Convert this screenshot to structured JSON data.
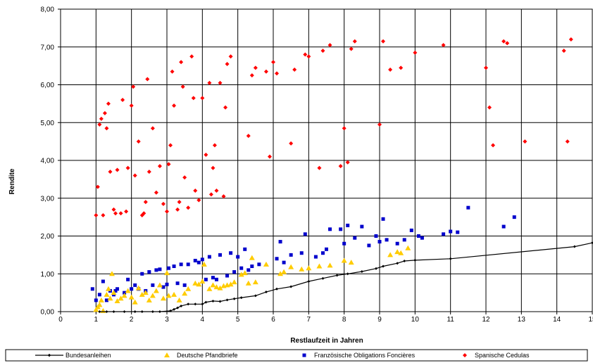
{
  "chart_data": {
    "type": "scatter",
    "title": "",
    "xlabel": "Restlaufzeit in Jahren",
    "ylabel": "Rendite",
    "xlim": [
      0,
      15
    ],
    "ylim": [
      0,
      8
    ],
    "xticks": [
      "0",
      "1",
      "2",
      "3",
      "4",
      "5",
      "6",
      "7",
      "8",
      "9",
      "10",
      "11",
      "12",
      "13",
      "14",
      "15"
    ],
    "yticks": [
      "0,00",
      "1,00",
      "2,00",
      "3,00",
      "4,00",
      "5,00",
      "6,00",
      "7,00",
      "8,00"
    ],
    "grid": true,
    "legend_position": "bottom",
    "series": [
      {
        "name": "Bundesanleihen",
        "type": "line",
        "color": "#000000",
        "marker": "diamond",
        "points": [
          [
            1.1,
            0.0
          ],
          [
            1.3,
            0.0
          ],
          [
            1.5,
            0.0
          ],
          [
            1.8,
            0.0
          ],
          [
            2.1,
            0.0
          ],
          [
            2.3,
            0.0
          ],
          [
            2.6,
            0.0
          ],
          [
            2.8,
            0.0
          ],
          [
            3.1,
            0.02
          ],
          [
            3.2,
            0.06
          ],
          [
            3.3,
            0.1
          ],
          [
            3.4,
            0.15
          ],
          [
            3.6,
            0.2
          ],
          [
            3.8,
            0.2
          ],
          [
            4.0,
            0.2
          ],
          [
            4.1,
            0.25
          ],
          [
            4.3,
            0.28
          ],
          [
            4.5,
            0.27
          ],
          [
            4.7,
            0.31
          ],
          [
            4.9,
            0.34
          ],
          [
            5.1,
            0.37
          ],
          [
            5.5,
            0.42
          ],
          [
            5.8,
            0.52
          ],
          [
            6.1,
            0.6
          ],
          [
            6.5,
            0.66
          ],
          [
            7.0,
            0.8
          ],
          [
            7.4,
            0.88
          ],
          [
            7.8,
            0.96
          ],
          [
            8.1,
            1.0
          ],
          [
            8.5,
            1.06
          ],
          [
            8.9,
            1.14
          ],
          [
            9.1,
            1.2
          ],
          [
            9.5,
            1.28
          ],
          [
            9.7,
            1.34
          ],
          [
            10.0,
            1.36
          ],
          [
            11.0,
            1.4
          ],
          [
            14.5,
            1.72
          ],
          [
            15.0,
            1.82
          ]
        ]
      },
      {
        "name": "Deutsche Pfandbriefe",
        "type": "scatter",
        "color": "#FFCC00",
        "marker": "triangle",
        "points": [
          [
            1.0,
            0.05
          ],
          [
            1.05,
            0.12
          ],
          [
            1.1,
            0.18
          ],
          [
            1.15,
            0.3
          ],
          [
            1.2,
            0.02
          ],
          [
            1.3,
            0.45
          ],
          [
            1.35,
            0.6
          ],
          [
            1.4,
            0.35
          ],
          [
            1.45,
            1.0
          ],
          [
            1.5,
            0.5
          ],
          [
            1.6,
            0.28
          ],
          [
            1.7,
            0.35
          ],
          [
            1.8,
            0.42
          ],
          [
            1.9,
            0.55
          ],
          [
            2.0,
            0.38
          ],
          [
            2.1,
            0.25
          ],
          [
            2.2,
            0.62
          ],
          [
            2.3,
            0.45
          ],
          [
            2.4,
            0.5
          ],
          [
            2.5,
            0.3
          ],
          [
            2.6,
            0.42
          ],
          [
            2.7,
            0.55
          ],
          [
            2.8,
            0.7
          ],
          [
            2.9,
            0.35
          ],
          [
            3.0,
            1.02
          ],
          [
            3.05,
            0.42
          ],
          [
            3.2,
            0.45
          ],
          [
            3.35,
            0.3
          ],
          [
            3.5,
            0.48
          ],
          [
            3.6,
            0.6
          ],
          [
            3.8,
            0.75
          ],
          [
            3.9,
            0.72
          ],
          [
            4.0,
            0.8
          ],
          [
            4.05,
            1.25
          ],
          [
            4.2,
            0.6
          ],
          [
            4.3,
            0.7
          ],
          [
            4.4,
            0.65
          ],
          [
            4.5,
            0.62
          ],
          [
            4.6,
            0.68
          ],
          [
            4.7,
            0.7
          ],
          [
            4.8,
            0.72
          ],
          [
            4.9,
            0.78
          ],
          [
            5.1,
            0.98
          ],
          [
            5.2,
            1.02
          ],
          [
            5.3,
            0.75
          ],
          [
            5.4,
            1.42
          ],
          [
            5.5,
            0.78
          ],
          [
            5.8,
            1.25
          ],
          [
            6.2,
            1.0
          ],
          [
            6.3,
            1.05
          ],
          [
            6.5,
            1.18
          ],
          [
            6.8,
            1.12
          ],
          [
            7.0,
            1.15
          ],
          [
            7.3,
            1.2
          ],
          [
            7.6,
            1.22
          ],
          [
            8.0,
            1.35
          ],
          [
            8.2,
            1.3
          ],
          [
            9.3,
            1.5
          ],
          [
            9.5,
            1.58
          ],
          [
            9.6,
            1.55
          ],
          [
            9.8,
            1.68
          ]
        ]
      },
      {
        "name": "Französische Obligations Foncières",
        "type": "scatter",
        "color": "#0000CC",
        "marker": "square",
        "points": [
          [
            0.9,
            0.6
          ],
          [
            1.0,
            0.3
          ],
          [
            1.1,
            0.45
          ],
          [
            1.2,
            0.8
          ],
          [
            1.3,
            0.3
          ],
          [
            1.4,
            0.55
          ],
          [
            1.5,
            0.45
          ],
          [
            1.55,
            0.55
          ],
          [
            1.6,
            0.6
          ],
          [
            1.8,
            0.5
          ],
          [
            1.9,
            0.85
          ],
          [
            2.0,
            0.6
          ],
          [
            2.1,
            0.7
          ],
          [
            2.2,
            0.6
          ],
          [
            2.3,
            1.0
          ],
          [
            2.4,
            0.55
          ],
          [
            2.5,
            1.05
          ],
          [
            2.6,
            0.7
          ],
          [
            2.7,
            1.1
          ],
          [
            2.8,
            1.12
          ],
          [
            2.9,
            0.65
          ],
          [
            3.0,
            0.72
          ],
          [
            3.05,
            1.15
          ],
          [
            3.2,
            1.2
          ],
          [
            3.3,
            0.75
          ],
          [
            3.4,
            1.25
          ],
          [
            3.5,
            0.7
          ],
          [
            3.6,
            1.25
          ],
          [
            3.8,
            1.35
          ],
          [
            3.9,
            1.3
          ],
          [
            4.0,
            1.38
          ],
          [
            4.1,
            0.85
          ],
          [
            4.2,
            1.45
          ],
          [
            4.3,
            0.9
          ],
          [
            4.4,
            0.85
          ],
          [
            4.5,
            1.5
          ],
          [
            4.7,
            0.95
          ],
          [
            4.8,
            1.55
          ],
          [
            4.9,
            1.05
          ],
          [
            5.0,
            1.45
          ],
          [
            5.1,
            1.15
          ],
          [
            5.2,
            1.65
          ],
          [
            5.3,
            1.1
          ],
          [
            5.4,
            1.2
          ],
          [
            5.6,
            1.25
          ],
          [
            6.1,
            1.4
          ],
          [
            6.2,
            1.85
          ],
          [
            6.3,
            1.3
          ],
          [
            6.5,
            1.5
          ],
          [
            6.8,
            1.55
          ],
          [
            6.9,
            2.05
          ],
          [
            7.2,
            1.45
          ],
          [
            7.4,
            1.55
          ],
          [
            7.5,
            1.65
          ],
          [
            7.6,
            2.18
          ],
          [
            7.9,
            2.18
          ],
          [
            8.0,
            1.8
          ],
          [
            8.1,
            2.28
          ],
          [
            8.3,
            1.95
          ],
          [
            8.5,
            2.25
          ],
          [
            8.7,
            1.75
          ],
          [
            8.9,
            2.0
          ],
          [
            9.0,
            1.85
          ],
          [
            9.1,
            2.45
          ],
          [
            9.2,
            1.9
          ],
          [
            9.5,
            1.8
          ],
          [
            9.7,
            1.9
          ],
          [
            9.9,
            2.15
          ],
          [
            10.1,
            2.0
          ],
          [
            10.2,
            1.95
          ],
          [
            10.8,
            2.05
          ],
          [
            11.0,
            2.12
          ],
          [
            11.2,
            2.1
          ],
          [
            11.5,
            2.75
          ],
          [
            12.5,
            2.25
          ],
          [
            12.8,
            2.5
          ]
        ]
      },
      {
        "name": "Spanische Cedulas",
        "type": "scatter",
        "color": "#FF0000",
        "marker": "diamond",
        "points": [
          [
            1.0,
            2.55
          ],
          [
            1.05,
            3.3
          ],
          [
            1.1,
            4.95
          ],
          [
            1.15,
            5.1
          ],
          [
            1.2,
            2.55
          ],
          [
            1.25,
            5.25
          ],
          [
            1.3,
            4.85
          ],
          [
            1.35,
            5.5
          ],
          [
            1.4,
            3.7
          ],
          [
            1.5,
            2.7
          ],
          [
            1.55,
            2.6
          ],
          [
            1.6,
            3.75
          ],
          [
            1.7,
            2.6
          ],
          [
            1.75,
            5.6
          ],
          [
            1.85,
            2.65
          ],
          [
            1.9,
            3.8
          ],
          [
            2.0,
            5.45
          ],
          [
            2.05,
            5.95
          ],
          [
            2.1,
            3.6
          ],
          [
            2.2,
            4.5
          ],
          [
            2.3,
            2.55
          ],
          [
            2.35,
            2.6
          ],
          [
            2.4,
            2.9
          ],
          [
            2.45,
            6.15
          ],
          [
            2.5,
            3.7
          ],
          [
            2.6,
            4.85
          ],
          [
            2.7,
            3.15
          ],
          [
            2.8,
            3.85
          ],
          [
            2.9,
            2.85
          ],
          [
            3.0,
            2.65
          ],
          [
            3.05,
            3.9
          ],
          [
            3.1,
            4.4
          ],
          [
            3.15,
            6.35
          ],
          [
            3.2,
            5.45
          ],
          [
            3.3,
            2.7
          ],
          [
            3.35,
            2.9
          ],
          [
            3.4,
            6.6
          ],
          [
            3.45,
            5.95
          ],
          [
            3.5,
            3.55
          ],
          [
            3.6,
            2.75
          ],
          [
            3.7,
            6.75
          ],
          [
            3.75,
            5.65
          ],
          [
            3.8,
            3.2
          ],
          [
            3.9,
            2.95
          ],
          [
            4.0,
            5.65
          ],
          [
            4.1,
            4.15
          ],
          [
            4.2,
            6.05
          ],
          [
            4.25,
            3.1
          ],
          [
            4.3,
            3.8
          ],
          [
            4.35,
            4.4
          ],
          [
            4.4,
            3.2
          ],
          [
            4.5,
            6.05
          ],
          [
            4.6,
            3.05
          ],
          [
            4.65,
            5.4
          ],
          [
            4.7,
            6.55
          ],
          [
            4.8,
            6.75
          ],
          [
            5.3,
            4.65
          ],
          [
            5.4,
            6.25
          ],
          [
            5.5,
            6.45
          ],
          [
            5.8,
            6.35
          ],
          [
            5.9,
            4.1
          ],
          [
            6.0,
            6.6
          ],
          [
            6.1,
            6.3
          ],
          [
            6.5,
            4.45
          ],
          [
            6.6,
            6.4
          ],
          [
            6.9,
            6.8
          ],
          [
            7.0,
            6.75
          ],
          [
            7.3,
            3.8
          ],
          [
            7.4,
            6.9
          ],
          [
            7.6,
            7.05
          ],
          [
            7.9,
            3.85
          ],
          [
            8.0,
            4.85
          ],
          [
            8.1,
            3.95
          ],
          [
            8.2,
            6.95
          ],
          [
            8.3,
            7.15
          ],
          [
            9.0,
            4.95
          ],
          [
            9.1,
            7.15
          ],
          [
            9.3,
            6.4
          ],
          [
            9.6,
            6.45
          ],
          [
            10.0,
            6.85
          ],
          [
            10.8,
            7.05
          ],
          [
            12.0,
            6.45
          ],
          [
            12.1,
            5.4
          ],
          [
            12.2,
            4.4
          ],
          [
            12.5,
            7.15
          ],
          [
            12.6,
            7.1
          ],
          [
            13.1,
            4.5
          ],
          [
            14.2,
            6.9
          ],
          [
            14.3,
            4.5
          ],
          [
            14.4,
            7.2
          ]
        ]
      }
    ]
  }
}
